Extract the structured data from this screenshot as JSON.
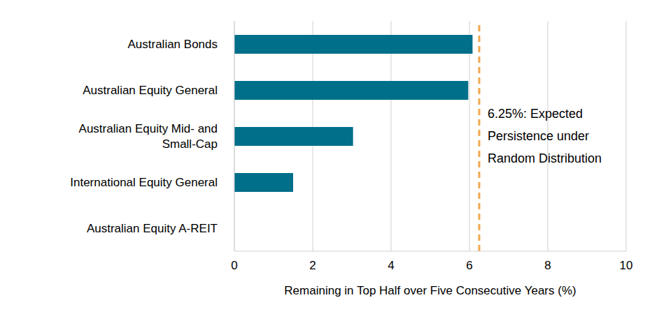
{
  "chart_data": {
    "type": "bar",
    "orientation": "horizontal",
    "categories": [
      "Australian Bonds",
      "Australian Equity General",
      "Australian Equity Mid- and Small-Cap",
      "International Equity General",
      "Australian Equity A-REIT"
    ],
    "values": [
      6.08,
      5.97,
      3.03,
      1.5,
      0
    ],
    "color": "#006f8a",
    "xlabel": "Remaining in Top Half over Five Consecutive Years (%)",
    "xlim": [
      0,
      10
    ],
    "xticks": [
      0,
      2,
      4,
      6,
      8,
      10
    ],
    "grid": true,
    "reference_line": {
      "value": 6.25,
      "label": "6.25%: Expected Persistence under Random Distribution",
      "color": "#f0a84e",
      "line_style": "dashed"
    }
  }
}
